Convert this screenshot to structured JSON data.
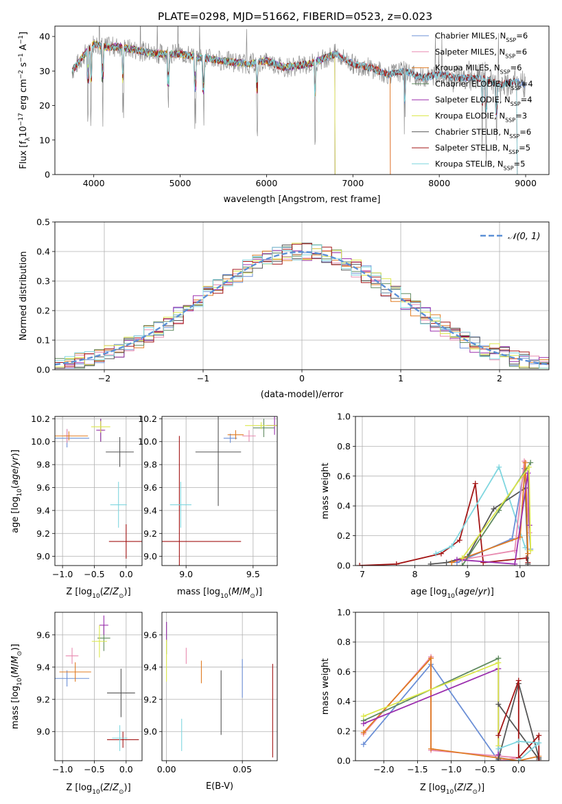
{
  "colors": {
    "chabrier_miles": "#6b8fd6",
    "salpeter_miles": "#e88ab0",
    "kroupa_miles": "#e07b22",
    "chabrier_elodie": "#5f8a5f",
    "salpeter_elodie": "#9b2fae",
    "kroupa_elodie": "#dce84a",
    "chabrier_stelib": "#555555",
    "salpeter_stelib": "#a31515",
    "kroupa_stelib": "#7fd6df",
    "normal": "#5b8fd6"
  },
  "chart_data": [
    {
      "id": "spectrum",
      "type": "line",
      "title": "PLATE=0298, MJD=51662, FIBERID=0523, z=0.023",
      "xlabel": "wavelength [Angstrom, rest frame]",
      "ylabel": "Flux [fλ10⁻¹⁷ erg cm⁻² s⁻¹ A⁻¹]",
      "xlim": [
        3550,
        9270
      ],
      "ylim": [
        0,
        43
      ],
      "xticks": [
        "4000",
        "5000",
        "6000",
        "7000",
        "8000",
        "9000"
      ],
      "yticks": [
        "0",
        "10",
        "20",
        "30",
        "40"
      ],
      "legend_position": "top-right",
      "continuum_x": [
        3750,
        3900,
        4000,
        4100,
        4300,
        4500,
        4700,
        5000,
        5200,
        5500,
        5800,
        6000,
        6200,
        6500,
        6700,
        6800,
        7000,
        7200,
        7400,
        7600,
        7800,
        8000,
        8200,
        8500,
        8700,
        8900,
        9000
      ],
      "continuum_y": [
        30,
        35,
        38,
        37,
        37,
        36,
        35,
        35,
        34,
        33,
        32,
        33,
        31,
        32,
        34,
        35,
        32,
        31,
        29,
        30,
        28,
        29,
        28,
        28,
        26,
        27,
        26
      ],
      "series": [
        {
          "name": "Chabrier MILES, N_SSP=6",
          "legend": {
            "pre": "Chabrier MILES, N",
            "sub": "SSP",
            "post": "=6"
          },
          "color_key": "chabrier_miles",
          "x_end": 9000
        },
        {
          "name": "Salpeter MILES, N_SSP=6",
          "legend": {
            "pre": "Salpeter MILES, N",
            "sub": "SSP",
            "post": "=6"
          },
          "color_key": "salpeter_miles",
          "x_end": 7430
        },
        {
          "name": "Kroupa MILES, N_SSP=6",
          "legend": {
            "pre": "Kroupa MILES, N",
            "sub": "SSP",
            "post": "=6"
          },
          "color_key": "kroupa_miles",
          "x_end": 7430
        },
        {
          "name": "Chabrier ELODIE, N_SSP=4",
          "legend": {
            "pre": "Chabrier ELODIE, N",
            "sub": "SSP",
            "post": "=4"
          },
          "color_key": "chabrier_elodie",
          "x_end": 6790
        },
        {
          "name": "Salpeter ELODIE, N_SSP=4",
          "legend": {
            "pre": "Salpeter ELODIE, N",
            "sub": "SSP",
            "post": "=4"
          },
          "color_key": "salpeter_elodie",
          "x_end": 6790
        },
        {
          "name": "Kroupa ELODIE, N_SSP=3",
          "legend": {
            "pre": "Kroupa ELODIE, N",
            "sub": "SSP",
            "post": "=3"
          },
          "color_key": "kroupa_elodie",
          "x_end": 6790
        },
        {
          "name": "Chabrier STELIB, N_SSP=6",
          "legend": {
            "pre": "Chabrier STELIB, N",
            "sub": "SSP",
            "post": "=6"
          },
          "color_key": "chabrier_stelib",
          "x_end": 9000
        },
        {
          "name": "Salpeter STELIB, N_SSP=5",
          "legend": {
            "pre": "Salpeter STELIB, N",
            "sub": "SSP",
            "post": "=5"
          },
          "color_key": "salpeter_stelib",
          "x_end": 8900
        },
        {
          "name": "Kroupa STELIB, N_SSP=5",
          "legend": {
            "pre": "Kroupa STELIB, N",
            "sub": "SSP",
            "post": "=5"
          },
          "color_key": "kroupa_stelib",
          "x_end": 8900
        }
      ]
    },
    {
      "id": "residuals",
      "type": "line",
      "xlabel": "(data-model)/error",
      "ylabel": "Normed distribution",
      "xlim": [
        -2.5,
        2.5
      ],
      "ylim": [
        0,
        0.5
      ],
      "xticks": [
        "−2",
        "−1",
        "0",
        "1",
        "2"
      ],
      "yticks": [
        "0.0",
        "0.1",
        "0.2",
        "0.3",
        "0.4",
        "0.5"
      ],
      "grid": true,
      "legend_position": "top-right",
      "legend_label": "𝒩(0, 1)",
      "bin_width": 0.1,
      "histogram_note": "step histograms for the nine fits approximating N(0,1)"
    },
    {
      "id": "age_vs_Z",
      "type": "scatter",
      "xlabel": "Z [log10(Z/Z⊙)]",
      "ylabel": "age [log10(age/yr)]",
      "xlim": [
        -1.12,
        0.25
      ],
      "ylim": [
        8.92,
        10.22
      ],
      "xticks": [
        "−1.0",
        "−0.5",
        "0.0"
      ],
      "yticks": [
        "9.0",
        "9.2",
        "9.4",
        "9.6",
        "9.8",
        "10.0",
        "10.2"
      ],
      "grid": true,
      "points": [
        {
          "c": "chabrier_miles",
          "x": -0.93,
          "y": 10.03,
          "xe": 0.35,
          "ye": 0.08
        },
        {
          "c": "salpeter_miles",
          "x": -0.93,
          "y": 10.05,
          "xe": 0.05,
          "ye": 0.06
        },
        {
          "c": "kroupa_miles",
          "x": -0.9,
          "y": 10.05,
          "xe": 0.3,
          "ye": 0.04
        },
        {
          "c": "chabrier_elodie",
          "x": -0.4,
          "y": 10.1,
          "xe": 0.05,
          "ye": 0.1
        },
        {
          "c": "salpeter_elodie",
          "x": -0.4,
          "y": 10.1,
          "xe": 0.07,
          "ye": 0.1
        },
        {
          "c": "kroupa_elodie",
          "x": -0.4,
          "y": 10.13,
          "xe": 0.15,
          "ye": 0.05
        },
        {
          "c": "chabrier_stelib",
          "x": -0.1,
          "y": 9.91,
          "xe": 0.22,
          "ye": 0.13
        },
        {
          "c": "salpeter_stelib",
          "x": 0.0,
          "y": 9.13,
          "xe": 0.27,
          "ye": 0.15
        },
        {
          "c": "kroupa_stelib",
          "x": -0.12,
          "y": 9.45,
          "xe": 0.13,
          "ye": 0.2
        }
      ]
    },
    {
      "id": "age_vs_mass",
      "type": "scatter",
      "xlabel": "mass [log10(M/M⊙)]",
      "xlim": [
        8.82,
        9.68
      ],
      "ylim": [
        8.92,
        10.22
      ],
      "xticks": [
        "9.0",
        "9.5"
      ],
      "yticks": [
        "9.0",
        "9.2",
        "9.4",
        "9.6",
        "9.8",
        "10.0",
        "10.2"
      ],
      "grid": true,
      "points": [
        {
          "c": "chabrier_miles",
          "x": 9.33,
          "y": 10.03,
          "xe": 0.05,
          "ye": 0.04
        },
        {
          "c": "salpeter_miles",
          "x": 9.47,
          "y": 10.05,
          "xe": 0.05,
          "ye": 0.05
        },
        {
          "c": "kroupa_miles",
          "x": 9.37,
          "y": 10.06,
          "xe": 0.06,
          "ye": 0.04
        },
        {
          "c": "chabrier_elodie",
          "x": 9.58,
          "y": 10.12,
          "xe": 0.08,
          "ye": 0.08
        },
        {
          "c": "salpeter_elodie",
          "x": 9.66,
          "y": 10.14,
          "xe": 0.06,
          "ye": 0.08
        },
        {
          "c": "kroupa_elodie",
          "x": 9.56,
          "y": 10.14,
          "xe": 0.12,
          "ye": 0.03
        },
        {
          "c": "chabrier_stelib",
          "x": 9.24,
          "y": 9.91,
          "xe": 0.17,
          "ye": 0.47
        },
        {
          "c": "salpeter_stelib",
          "x": 8.95,
          "y": 9.13,
          "xe": 0.46,
          "ye": 0.92
        },
        {
          "c": "kroupa_stelib",
          "x": 8.96,
          "y": 9.45,
          "xe": 0.08,
          "ye": 0.2
        }
      ]
    },
    {
      "id": "mass_weight_vs_age",
      "type": "line",
      "xlabel": "age [log10(age/yr)]",
      "ylabel": "mass weight",
      "xlim": [
        6.87,
        10.55
      ],
      "ylim": [
        0,
        1
      ],
      "xticks": [
        "7",
        "8",
        "9",
        "10"
      ],
      "yticks": [
        "0.0",
        "0.2",
        "0.4",
        "0.6",
        "0.8",
        "1.0"
      ],
      "grid": true,
      "series": [
        {
          "c": "salpeter_stelib",
          "x": [
            6.95,
            7.65,
            8.5,
            8.85,
            9.15,
            9.3,
            10.12,
            10.15
          ],
          "y": [
            0.0,
            0.01,
            0.08,
            0.17,
            0.55,
            0.02,
            0.05,
            0.02
          ]
        },
        {
          "c": "kroupa_stelib",
          "x": [
            8.4,
            8.7,
            9.6,
            10.1
          ],
          "y": [
            0.08,
            0.13,
            0.66,
            0.12
          ]
        },
        {
          "c": "chabrier_stelib",
          "x": [
            8.3,
            8.6,
            9.0,
            9.5,
            10.1,
            10.15
          ],
          "y": [
            0.01,
            0.02,
            0.06,
            0.38,
            0.52,
            0.01
          ]
        },
        {
          "c": "chabrier_miles",
          "x": [
            8.8,
            9.85,
            10.08,
            10.2
          ],
          "y": [
            0.02,
            0.18,
            0.65,
            0.11
          ]
        },
        {
          "c": "salpeter_miles",
          "x": [
            8.9,
            9.9,
            10.08,
            10.18
          ],
          "y": [
            0.04,
            0.1,
            0.7,
            0.22
          ]
        },
        {
          "c": "kroupa_miles",
          "x": [
            8.7,
            10.0,
            10.1,
            10.15
          ],
          "y": [
            0.02,
            0.19,
            0.69,
            0.08
          ]
        },
        {
          "c": "chabrier_elodie",
          "x": [
            8.9,
            9.6,
            10.2
          ],
          "y": [
            0.0,
            0.37,
            0.69
          ]
        },
        {
          "c": "salpeter_elodie",
          "x": [
            8.8,
            9.9,
            10.15,
            10.18
          ],
          "y": [
            0.04,
            0.01,
            0.62,
            0.27
          ]
        },
        {
          "c": "kroupa_elodie",
          "x": [
            8.9,
            10.17,
            10.2
          ],
          "y": [
            0.05,
            0.66,
            0.1
          ]
        }
      ]
    },
    {
      "id": "mass_vs_Z",
      "type": "scatter",
      "xlabel": "Z [log10(Z/Z⊙)]",
      "ylabel": "mass [log10(M/M⊙)]",
      "xlim": [
        -1.12,
        0.25
      ],
      "ylim": [
        8.82,
        9.74
      ],
      "xticks": [
        "−1.0",
        "−0.5",
        "0.0"
      ],
      "yticks": [
        "9.0",
        "9.2",
        "9.4",
        "9.6"
      ],
      "grid": true,
      "points": [
        {
          "c": "chabrier_miles",
          "x": -0.93,
          "y": 9.33,
          "xe": 0.35,
          "ye": 0.05
        },
        {
          "c": "salpeter_miles",
          "x": -0.85,
          "y": 9.47,
          "xe": 0.1,
          "ye": 0.05
        },
        {
          "c": "kroupa_miles",
          "x": -0.8,
          "y": 9.37,
          "xe": 0.25,
          "ye": 0.06
        },
        {
          "c": "chabrier_elodie",
          "x": -0.35,
          "y": 9.58,
          "xe": 0.1,
          "ye": 0.08
        },
        {
          "c": "salpeter_elodie",
          "x": -0.35,
          "y": 9.66,
          "xe": 0.07,
          "ye": 0.06
        },
        {
          "c": "kroupa_elodie",
          "x": -0.42,
          "y": 9.56,
          "xe": 0.12,
          "ye": 0.1
        },
        {
          "c": "chabrier_stelib",
          "x": -0.08,
          "y": 9.24,
          "xe": 0.22,
          "ye": 0.15
        },
        {
          "c": "salpeter_stelib",
          "x": -0.05,
          "y": 8.95,
          "xe": 0.25,
          "ye": 0.05
        },
        {
          "c": "kroupa_stelib",
          "x": -0.1,
          "y": 8.96,
          "xe": 0.12,
          "ye": 0.08
        }
      ]
    },
    {
      "id": "mass_vs_ebv",
      "type": "scatter",
      "xlabel": "E(B-V)",
      "xlim": [
        -0.003,
        0.073
      ],
      "ylim": [
        8.82,
        9.74
      ],
      "xticks": [
        "0.00",
        "0.05"
      ],
      "yticks": [
        "9.0",
        "9.2",
        "9.4",
        "9.6"
      ],
      "grid": true,
      "points": [
        {
          "c": "chabrier_miles",
          "x": 0.05,
          "y": 9.33,
          "ye": 0.12
        },
        {
          "c": "salpeter_miles",
          "x": 0.013,
          "y": 9.47,
          "ye": 0.05
        },
        {
          "c": "kroupa_miles",
          "x": 0.023,
          "y": 9.37,
          "ye": 0.07
        },
        {
          "c": "chabrier_elodie",
          "x": 0.0,
          "y": 9.58,
          "ye": 0.1
        },
        {
          "c": "salpeter_elodie",
          "x": 0.0,
          "y": 9.62,
          "ye": 0.06
        },
        {
          "c": "kroupa_elodie",
          "x": 0.0,
          "y": 9.44,
          "ye": 0.13
        },
        {
          "c": "chabrier_stelib",
          "x": 0.036,
          "y": 9.18,
          "ye": 0.2
        },
        {
          "c": "salpeter_stelib",
          "x": 0.07,
          "y": 9.13,
          "ye": 0.29
        },
        {
          "c": "kroupa_stelib",
          "x": 0.01,
          "y": 8.98,
          "ye": 0.1
        }
      ]
    },
    {
      "id": "mass_weight_vs_Z",
      "type": "line",
      "xlabel": "Z [log10(Z/Z⊙)]",
      "ylabel": "mass weight",
      "xlim": [
        -2.42,
        0.45
      ],
      "ylim": [
        0,
        1
      ],
      "xticks": [
        "−2.0",
        "−1.5",
        "−1.0",
        "−0.5",
        "0.0"
      ],
      "yticks": [
        "0.0",
        "0.2",
        "0.4",
        "0.6",
        "0.8",
        "1.0"
      ],
      "grid": true,
      "series": [
        {
          "c": "chabrier_miles",
          "x": [
            -2.3,
            -1.3,
            -0.3,
            0.0,
            -0.3
          ],
          "y": [
            0.11,
            0.65,
            0.0,
            0.0,
            0.02
          ]
        },
        {
          "c": "salpeter_miles",
          "x": [
            -2.3,
            -1.3,
            -1.3,
            0.0,
            -0.3
          ],
          "y": [
            0.18,
            0.7,
            0.07,
            0.02,
            0.0
          ]
        },
        {
          "c": "kroupa_miles",
          "x": [
            -2.3,
            -1.3,
            -1.3,
            0.0,
            0.3
          ],
          "y": [
            0.19,
            0.69,
            0.08,
            0.0,
            0.03
          ]
        },
        {
          "c": "chabrier_elodie",
          "x": [
            -2.3,
            -0.3,
            -0.3
          ],
          "y": [
            0.27,
            0.69,
            0.0
          ]
        },
        {
          "c": "salpeter_elodie",
          "x": [
            -2.3,
            -0.3,
            -0.3
          ],
          "y": [
            0.25,
            0.62,
            0.04
          ]
        },
        {
          "c": "kroupa_elodie",
          "x": [
            -2.3,
            -0.3,
            -0.3
          ],
          "y": [
            0.3,
            0.66,
            0.1
          ]
        },
        {
          "c": "chabrier_stelib",
          "x": [
            -0.3,
            0.0,
            0.3,
            0.3,
            -0.3
          ],
          "y": [
            0.01,
            0.52,
            0.02,
            0.01,
            0.38
          ]
        },
        {
          "c": "salpeter_stelib",
          "x": [
            -0.3,
            0.0,
            0.0,
            0.3,
            0.3
          ],
          "y": [
            0.17,
            0.54,
            0.02,
            0.17,
            0.0
          ]
        },
        {
          "c": "kroupa_stelib",
          "x": [
            -0.3,
            0.0,
            0.3,
            0.0
          ],
          "y": [
            0.08,
            0.13,
            0.12,
            0.0
          ]
        }
      ]
    }
  ]
}
